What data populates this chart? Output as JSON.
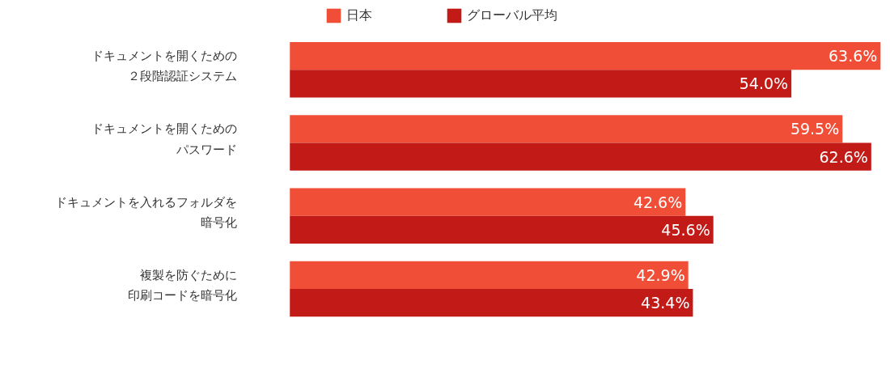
{
  "chart_data": {
    "type": "bar",
    "orientation": "horizontal",
    "categories": [
      "ドキュメントを開くための２段階認証システム",
      "ドキュメントを開くためのパスワード",
      "ドキュメントを入れるフォルダを暗号化",
      "複製を防ぐために印刷コードを暗号化"
    ],
    "series": [
      {
        "name": "日本",
        "color": "#f04e37",
        "values": [
          63.6,
          59.5,
          42.6,
          42.9
        ],
        "value_labels": [
          "63.6%",
          "59.5%",
          "42.6%",
          "42.9%"
        ]
      },
      {
        "name": "グローバル平均",
        "color": "#c21b17",
        "values": [
          54.0,
          62.6,
          45.6,
          43.4
        ],
        "value_labels": [
          "54.0%",
          "62.6%",
          "45.6%",
          "43.4%"
        ]
      }
    ],
    "legend": "top",
    "grid": false
  }
}
